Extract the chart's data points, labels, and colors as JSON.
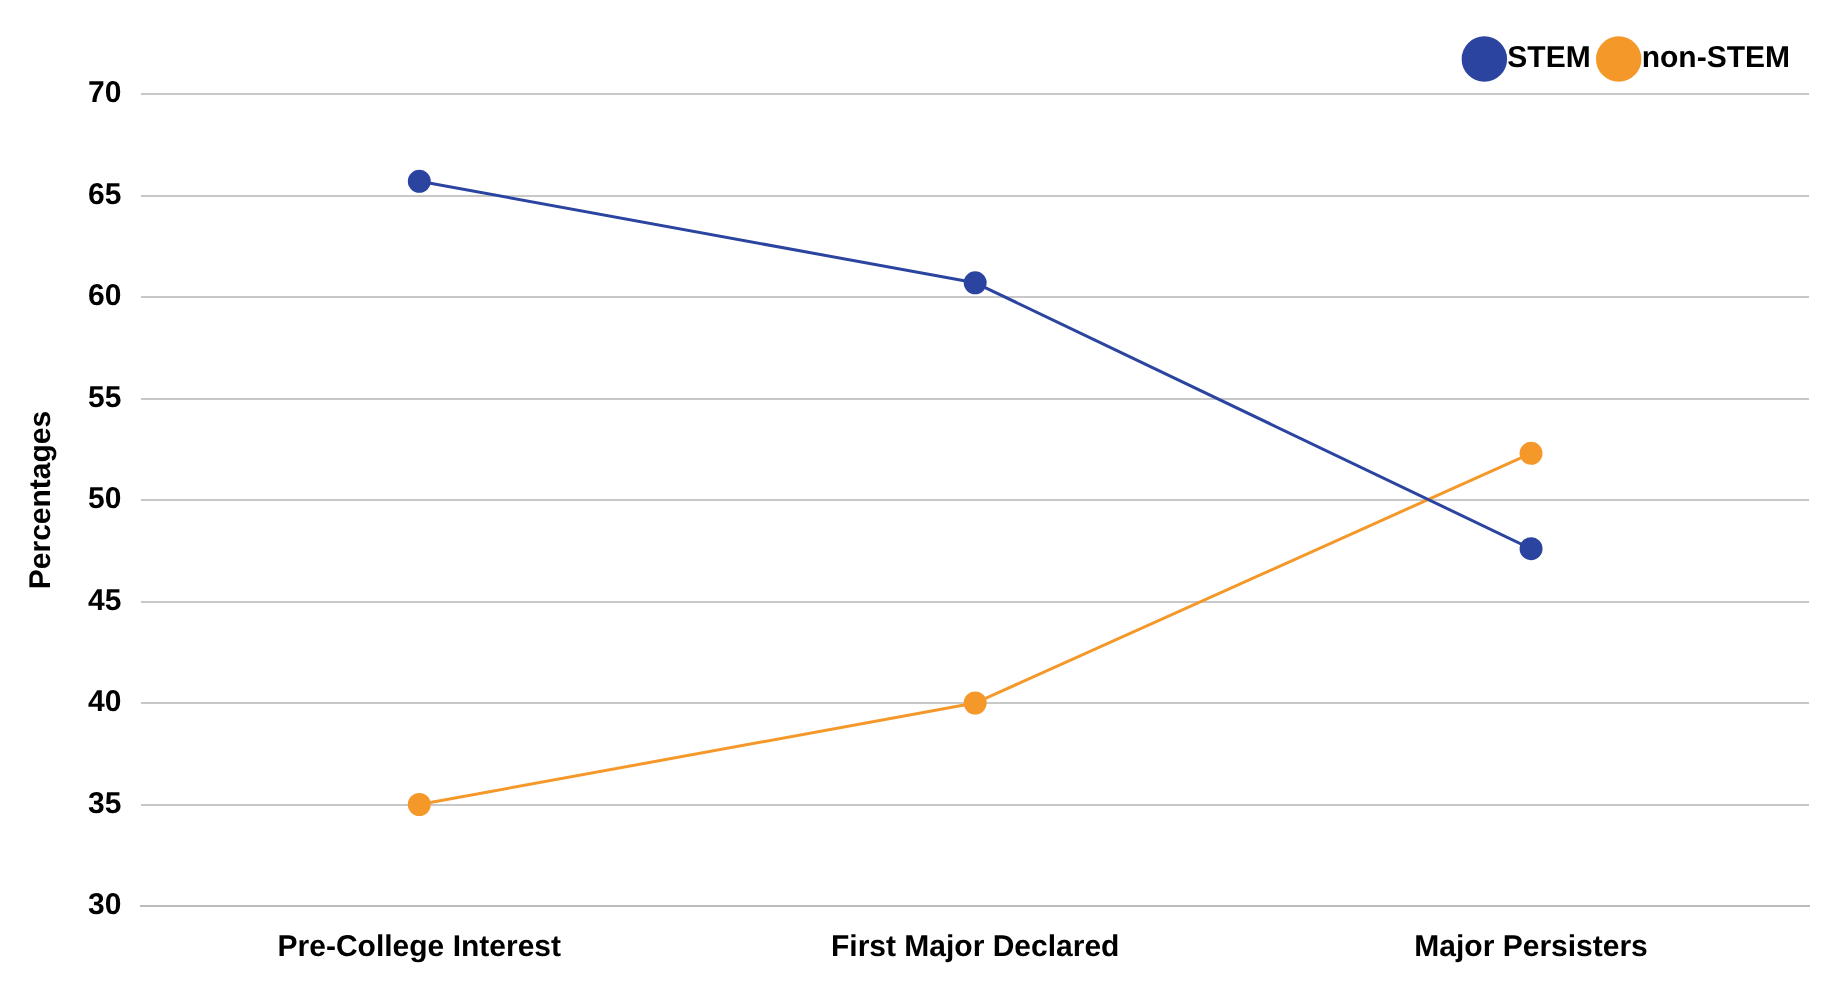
{
  "chart_data": {
    "type": "line",
    "ylabel": "Percentages",
    "categories": [
      "Pre-College Interest",
      "First Major Declared",
      "Major Persisters"
    ],
    "series": [
      {
        "name": "STEM",
        "color": "#2b44a0",
        "values": [
          65.7,
          60.7,
          47.6
        ]
      },
      {
        "name": "non-STEM",
        "color": "#f5982a",
        "values": [
          35,
          40,
          52.3
        ]
      }
    ],
    "ylim": [
      30,
      70
    ],
    "yticks": [
      30,
      35,
      40,
      45,
      50,
      55,
      60,
      65,
      70
    ],
    "grid": "y",
    "legend": "top right",
    "marker": "circle",
    "line_style": "solid"
  }
}
